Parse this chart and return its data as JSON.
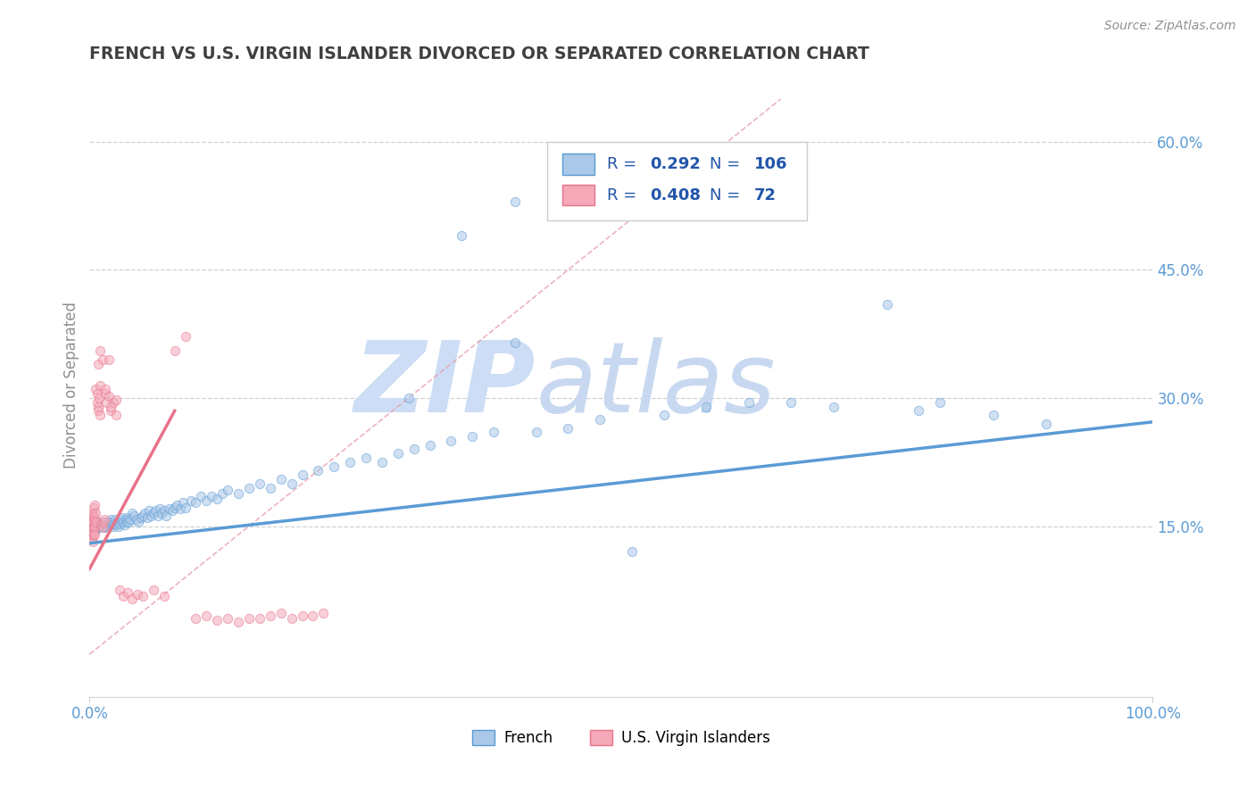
{
  "title": "FRENCH VS U.S. VIRGIN ISLANDER DIVORCED OR SEPARATED CORRELATION CHART",
  "source": "Source: ZipAtlas.com",
  "ylabel": "Divorced or Separated",
  "blue_R": "0.292",
  "blue_N": "106",
  "pink_R": "0.408",
  "pink_N": "72",
  "blue_scatter_x": [
    0.002,
    0.003,
    0.004,
    0.005,
    0.005,
    0.006,
    0.007,
    0.008,
    0.009,
    0.01,
    0.011,
    0.012,
    0.013,
    0.014,
    0.015,
    0.016,
    0.017,
    0.018,
    0.019,
    0.02,
    0.021,
    0.022,
    0.023,
    0.024,
    0.025,
    0.026,
    0.027,
    0.028,
    0.029,
    0.03,
    0.031,
    0.032,
    0.033,
    0.034,
    0.035,
    0.036,
    0.037,
    0.038,
    0.04,
    0.042,
    0.044,
    0.046,
    0.048,
    0.05,
    0.052,
    0.054,
    0.056,
    0.058,
    0.06,
    0.062,
    0.064,
    0.066,
    0.068,
    0.07,
    0.072,
    0.075,
    0.078,
    0.08,
    0.082,
    0.085,
    0.088,
    0.09,
    0.095,
    0.1,
    0.105,
    0.11,
    0.115,
    0.12,
    0.125,
    0.13,
    0.14,
    0.15,
    0.16,
    0.17,
    0.18,
    0.19,
    0.2,
    0.215,
    0.23,
    0.245,
    0.26,
    0.275,
    0.29,
    0.305,
    0.32,
    0.34,
    0.36,
    0.38,
    0.4,
    0.42,
    0.45,
    0.48,
    0.51,
    0.54,
    0.58,
    0.62,
    0.66,
    0.7,
    0.75,
    0.8,
    0.85,
    0.9,
    0.4,
    0.35,
    0.3,
    0.78
  ],
  "blue_scatter_y": [
    0.145,
    0.148,
    0.15,
    0.152,
    0.148,
    0.145,
    0.15,
    0.148,
    0.152,
    0.155,
    0.15,
    0.153,
    0.148,
    0.152,
    0.155,
    0.15,
    0.148,
    0.155,
    0.152,
    0.158,
    0.155,
    0.15,
    0.153,
    0.158,
    0.152,
    0.155,
    0.15,
    0.153,
    0.158,
    0.155,
    0.16,
    0.155,
    0.152,
    0.158,
    0.155,
    0.16,
    0.155,
    0.158,
    0.165,
    0.162,
    0.158,
    0.155,
    0.16,
    0.162,
    0.165,
    0.16,
    0.168,
    0.162,
    0.165,
    0.168,
    0.162,
    0.17,
    0.165,
    0.168,
    0.162,
    0.17,
    0.168,
    0.172,
    0.175,
    0.17,
    0.178,
    0.172,
    0.18,
    0.178,
    0.185,
    0.18,
    0.185,
    0.182,
    0.188,
    0.192,
    0.188,
    0.195,
    0.2,
    0.195,
    0.205,
    0.2,
    0.21,
    0.215,
    0.22,
    0.225,
    0.23,
    0.225,
    0.235,
    0.24,
    0.245,
    0.25,
    0.255,
    0.26,
    0.365,
    0.26,
    0.265,
    0.275,
    0.12,
    0.28,
    0.29,
    0.295,
    0.295,
    0.29,
    0.41,
    0.295,
    0.28,
    0.27,
    0.53,
    0.49,
    0.3,
    0.285
  ],
  "pink_scatter_x": [
    0.001,
    0.001,
    0.001,
    0.001,
    0.002,
    0.002,
    0.002,
    0.002,
    0.002,
    0.003,
    0.003,
    0.003,
    0.003,
    0.003,
    0.004,
    0.004,
    0.004,
    0.004,
    0.005,
    0.005,
    0.005,
    0.005,
    0.006,
    0.006,
    0.006,
    0.007,
    0.007,
    0.008,
    0.008,
    0.009,
    0.01,
    0.01,
    0.011,
    0.012,
    0.013,
    0.014,
    0.015,
    0.016,
    0.018,
    0.02,
    0.022,
    0.025,
    0.028,
    0.032,
    0.036,
    0.04,
    0.045,
    0.05,
    0.06,
    0.07,
    0.08,
    0.09,
    0.1,
    0.11,
    0.12,
    0.13,
    0.14,
    0.15,
    0.16,
    0.17,
    0.18,
    0.19,
    0.2,
    0.21,
    0.22,
    0.008,
    0.01,
    0.012,
    0.015,
    0.018,
    0.02,
    0.025
  ],
  "pink_scatter_y": [
    0.145,
    0.14,
    0.155,
    0.135,
    0.148,
    0.14,
    0.155,
    0.162,
    0.135,
    0.148,
    0.155,
    0.142,
    0.165,
    0.132,
    0.15,
    0.162,
    0.14,
    0.172,
    0.148,
    0.158,
    0.175,
    0.14,
    0.155,
    0.165,
    0.31,
    0.295,
    0.305,
    0.29,
    0.285,
    0.3,
    0.315,
    0.28,
    0.152,
    0.148,
    0.155,
    0.158,
    0.305,
    0.295,
    0.302,
    0.285,
    0.295,
    0.298,
    0.075,
    0.068,
    0.072,
    0.065,
    0.07,
    0.068,
    0.075,
    0.068,
    0.355,
    0.372,
    0.042,
    0.045,
    0.04,
    0.042,
    0.038,
    0.042,
    0.042,
    0.045,
    0.048,
    0.042,
    0.045,
    0.045,
    0.048,
    0.34,
    0.355,
    0.345,
    0.31,
    0.345,
    0.29,
    0.28
  ],
  "blue_line_x": [
    0.0,
    1.0
  ],
  "blue_line_y": [
    0.13,
    0.272
  ],
  "pink_line_x": [
    0.0,
    0.08
  ],
  "pink_line_y": [
    0.1,
    0.285
  ],
  "diag_line_x": [
    0.0,
    0.65
  ],
  "diag_line_y": [
    0.0,
    0.65
  ],
  "xlim": [
    0.0,
    1.0
  ],
  "ylim": [
    -0.05,
    0.68
  ],
  "yticks": [
    0.15,
    0.3,
    0.45,
    0.6
  ],
  "ytick_labels": [
    "15.0%",
    "30.0%",
    "45.0%",
    "60.0%"
  ],
  "xtick_labels": [
    "0.0%",
    "100.0%"
  ],
  "scatter_alpha": 0.55,
  "scatter_size": 55,
  "blue_color": "#5b9bd5",
  "pink_color": "#e8728a",
  "blue_fill": "#aac8e8",
  "pink_fill": "#f4a8b8",
  "diag_color": "#e8a0b0",
  "grid_color": "#d0d0d0",
  "watermark_text": "ZIP",
  "watermark_text2": "atlas",
  "watermark_color": "#ccddf5",
  "watermark_color2": "#c8d8f0",
  "title_color": "#404040",
  "label_color": "#909090",
  "legend_text_color": "#2255aa",
  "bottom_legend_label1": "French",
  "bottom_legend_label2": "U.S. Virgin Islanders"
}
